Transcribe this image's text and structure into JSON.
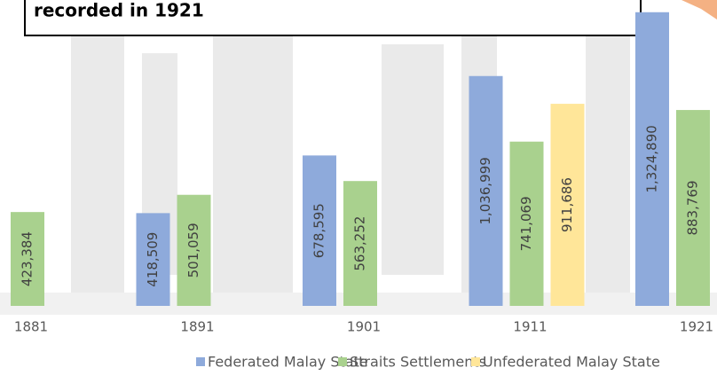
{
  "chart_data": {
    "type": "bar",
    "annotation": "recorded in 1921",
    "categories": [
      "1881",
      "1891",
      "1901",
      "1911",
      "1921"
    ],
    "series": [
      {
        "name": "Federated Malay State",
        "color": "#8eaadb",
        "values": [
          null,
          418509,
          678595,
          1036999,
          1324890
        ],
        "value_labels": [
          null,
          "418,509",
          "678,595",
          "1,036,999",
          "1,324,890"
        ]
      },
      {
        "name": "Straits Settlements",
        "color": "#a9d18e",
        "values": [
          423384,
          501059,
          563252,
          741069,
          883769
        ],
        "value_labels": [
          "423,384",
          "501,059",
          "563,252",
          "741,069",
          "883,769"
        ]
      },
      {
        "name": "Unfederated Malay State",
        "color": "#ffe699",
        "values": [
          null,
          null,
          null,
          911686,
          null
        ],
        "value_labels": [
          null,
          null,
          null,
          "911,686",
          null
        ]
      }
    ],
    "ylim": [
      0,
      1380000
    ],
    "legend": "bottom"
  }
}
